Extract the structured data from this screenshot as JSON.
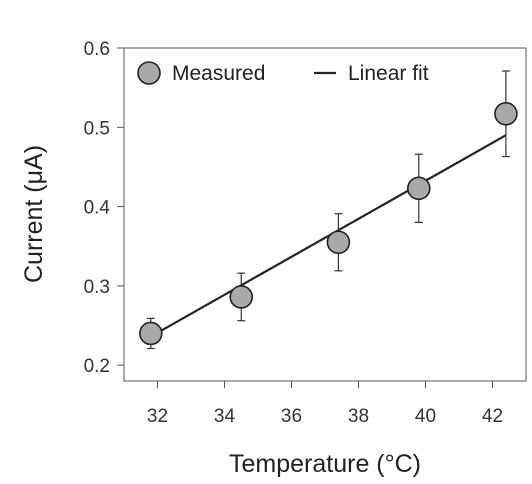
{
  "chart_data": {
    "type": "scatter",
    "title": "",
    "xlabel": "Temperature (°C)",
    "ylabel": "Current (μA)",
    "xlim": [
      31.0,
      43.0
    ],
    "ylim": [
      0.18,
      0.6
    ],
    "xticks": [
      32,
      34,
      36,
      38,
      40,
      42
    ],
    "xtick_labels": [
      "32",
      "34",
      "36",
      "38",
      "40",
      "42"
    ],
    "yticks": [
      0.2,
      0.3,
      0.4,
      0.5,
      0.6
    ],
    "ytick_labels": [
      "0.2",
      "0.3",
      "0.4",
      "0.5",
      "0.6"
    ],
    "grid": false,
    "legend_position": "top",
    "series": [
      {
        "name": "Measured",
        "kind": "points_with_error",
        "color": "#a9a9a9",
        "x": [
          31.8,
          34.5,
          37.4,
          39.8,
          42.4
        ],
        "y": [
          0.24,
          0.286,
          0.355,
          0.423,
          0.517
        ],
        "yerr": [
          0.019,
          0.03,
          0.036,
          0.043,
          0.054
        ]
      },
      {
        "name": "Linear fit",
        "kind": "line",
        "color": "#222222",
        "x": [
          31.8,
          42.4
        ],
        "y": [
          0.236,
          0.49
        ]
      }
    ]
  }
}
